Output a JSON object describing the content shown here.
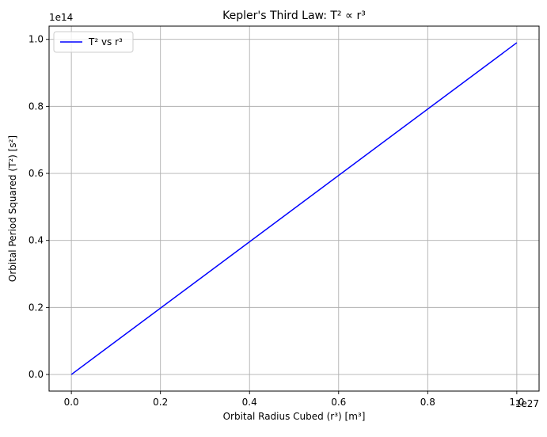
{
  "chart_data": {
    "type": "line",
    "title": "Kepler's Third Law: T² ∝ r³",
    "xlabel": "Orbital Radius Cubed (r³) [m³]",
    "ylabel": "Orbital Period Squared (T²) [s²]",
    "x_offset_text": "1e27",
    "y_offset_text": "1e14",
    "xlim": [
      -0.05,
      1.05
    ],
    "ylim": [
      -0.0495,
      1.0395
    ],
    "xticks": [
      0.0,
      0.2,
      0.4,
      0.6,
      0.8,
      1.0
    ],
    "xtick_labels": [
      "0.0",
      "0.2",
      "0.4",
      "0.6",
      "0.8",
      "1.0"
    ],
    "yticks": [
      0.0,
      0.2,
      0.4,
      0.6,
      0.8,
      1.0
    ],
    "ytick_labels": [
      "0.0",
      "0.2",
      "0.4",
      "0.6",
      "0.8",
      "1.0"
    ],
    "grid": true,
    "legend_position": "upper-left",
    "series": [
      {
        "name": "T² vs r³",
        "color": "#0000ff",
        "x": [
          0.0,
          1.0
        ],
        "y": [
          0.0,
          0.99
        ]
      }
    ]
  }
}
